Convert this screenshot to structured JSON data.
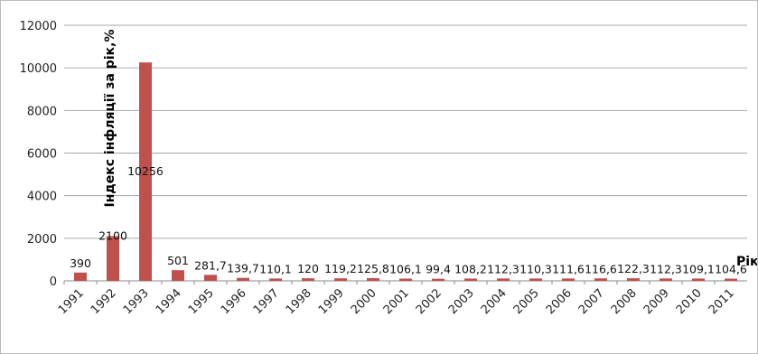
{
  "chart_data": {
    "type": "bar",
    "categories": [
      "1991",
      "1992",
      "1993",
      "1994",
      "1995",
      "1996",
      "1997",
      "1998",
      "1999",
      "2000",
      "2001",
      "2002",
      "2003",
      "2004",
      "2005",
      "2006",
      "2007",
      "2008",
      "2009",
      "2010",
      "2011"
    ],
    "values": [
      390,
      2100,
      10256,
      501,
      281.7,
      139.7,
      110.1,
      120,
      119.2,
      125.8,
      106.1,
      99.4,
      108.2,
      112.3,
      110.3,
      111.6,
      116.6,
      122.3,
      112.3,
      109.1,
      104.6
    ],
    "data_labels": [
      "390",
      "2100",
      "10256",
      "501",
      "281,7",
      "139,7",
      "110,1",
      "120",
      "119,2",
      "125,8",
      "106,1",
      "99,4",
      "108,2",
      "112,3",
      "110,3",
      "111,6",
      "116,6",
      "122,3",
      "112,3",
      "109,1",
      "104,6"
    ],
    "y_ticks": [
      "0",
      "2000",
      "4000",
      "6000",
      "8000",
      "10000",
      "12000"
    ],
    "ylim": [
      0,
      12000
    ],
    "ylabel": "Індекс інфляції за рік,%",
    "xlabel": "Рік",
    "grid": true,
    "bar_color": "#c0504d"
  }
}
